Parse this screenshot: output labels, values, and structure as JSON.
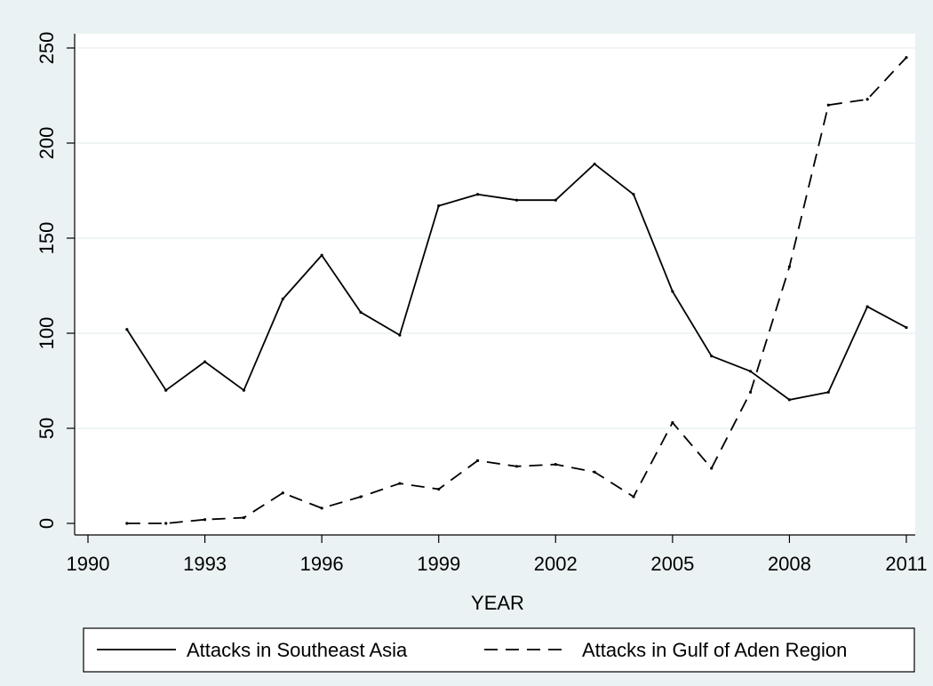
{
  "colors": {
    "background": "#eaf2f3",
    "plot_background": "#ffffff",
    "gridline": "#eaf2f3",
    "series_line": "#000000"
  },
  "chart_data": {
    "type": "line",
    "xlabel": "YEAR",
    "ylabel": "",
    "xlim": [
      1990,
      2011
    ],
    "ylim": [
      0,
      250
    ],
    "x_ticks": [
      1990,
      1993,
      1996,
      1999,
      2002,
      2005,
      2008,
      2011
    ],
    "y_ticks": [
      0,
      50,
      100,
      150,
      200,
      250
    ],
    "grid": true,
    "legend_position": "bottom",
    "x": [
      1991,
      1992,
      1993,
      1994,
      1995,
      1996,
      1997,
      1998,
      1999,
      2000,
      2001,
      2002,
      2003,
      2004,
      2005,
      2006,
      2007,
      2008,
      2009,
      2010,
      2011
    ],
    "series": [
      {
        "name": "Attacks in Southeast Asia",
        "style": "solid",
        "values": [
          102,
          70,
          85,
          70,
          118,
          141,
          111,
          99,
          167,
          173,
          170,
          170,
          189,
          173,
          122,
          88,
          80,
          65,
          69,
          114,
          103
        ]
      },
      {
        "name": "Attacks in Gulf of Aden Region",
        "style": "dashed",
        "values": [
          0,
          0,
          2,
          3,
          16,
          8,
          14,
          21,
          18,
          33,
          30,
          31,
          27,
          14,
          53,
          29,
          69,
          135,
          220,
          223,
          245
        ]
      }
    ]
  }
}
